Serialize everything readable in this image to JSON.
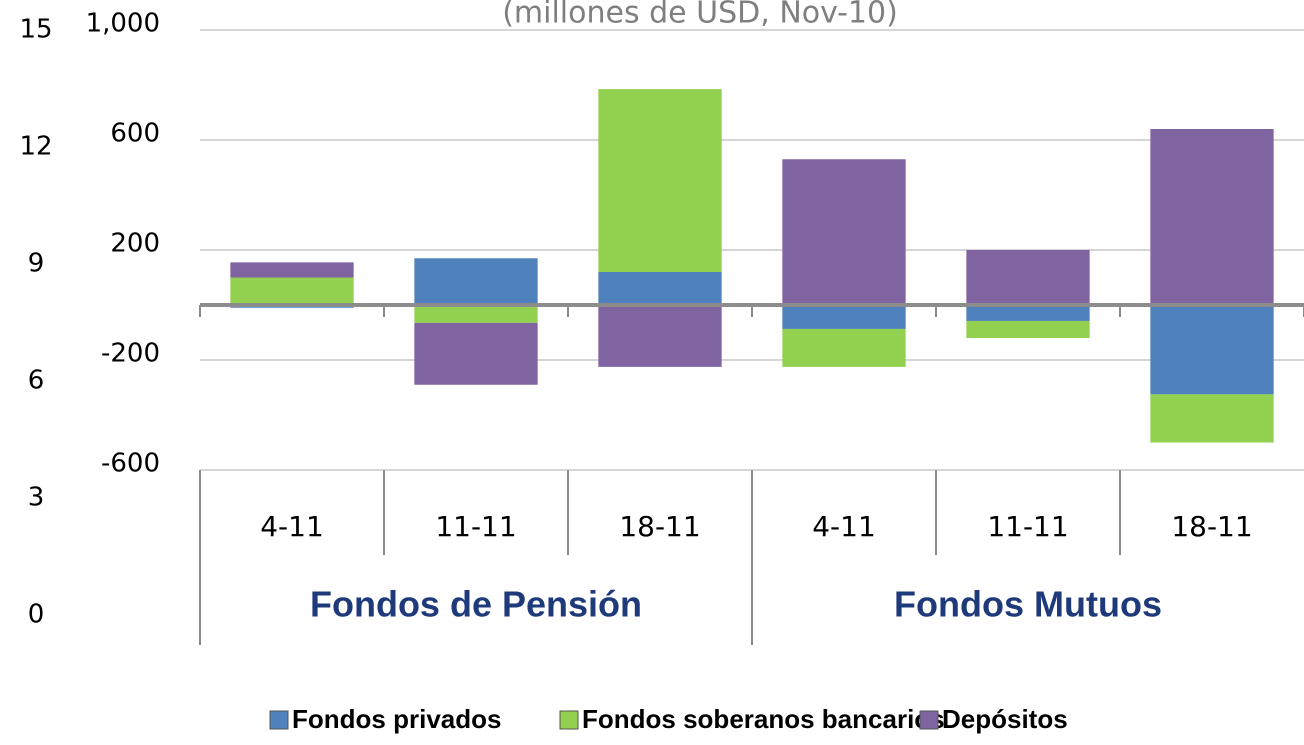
{
  "chart_data": {
    "type": "stacked-bar",
    "subtitle": "(millones de USD, Nov-10)",
    "categories": [
      "4-11",
      "11-11",
      "18-11",
      "4-11",
      "11-11",
      "18-11"
    ],
    "groups": [
      {
        "label": "Fondos de Pensión",
        "span": 3
      },
      {
        "label": "Fondos Mutuos",
        "span": 3
      }
    ],
    "series": [
      {
        "name": "Fondos privados",
        "color": "#4f81bd",
        "values": [
          -10,
          170,
          120,
          -87,
          -58,
          -325
        ]
      },
      {
        "name": "Fondos soberanos bancarios",
        "color": "#92d050",
        "values": [
          100,
          -65,
          665,
          -138,
          -62,
          -175
        ]
      },
      {
        "name": "Depósitos",
        "color": "#8064a2",
        "values": [
          55,
          -225,
          -225,
          530,
          200,
          640
        ]
      }
    ],
    "ylim": [
      -600,
      1000
    ],
    "yticks": [
      {
        "value": 1000,
        "label": "1,000"
      },
      600,
      200,
      -200,
      -600
    ],
    "y2lim": [
      0,
      15
    ],
    "y2ticks": [
      15,
      12,
      9,
      6,
      3,
      0
    ],
    "grid": true
  }
}
